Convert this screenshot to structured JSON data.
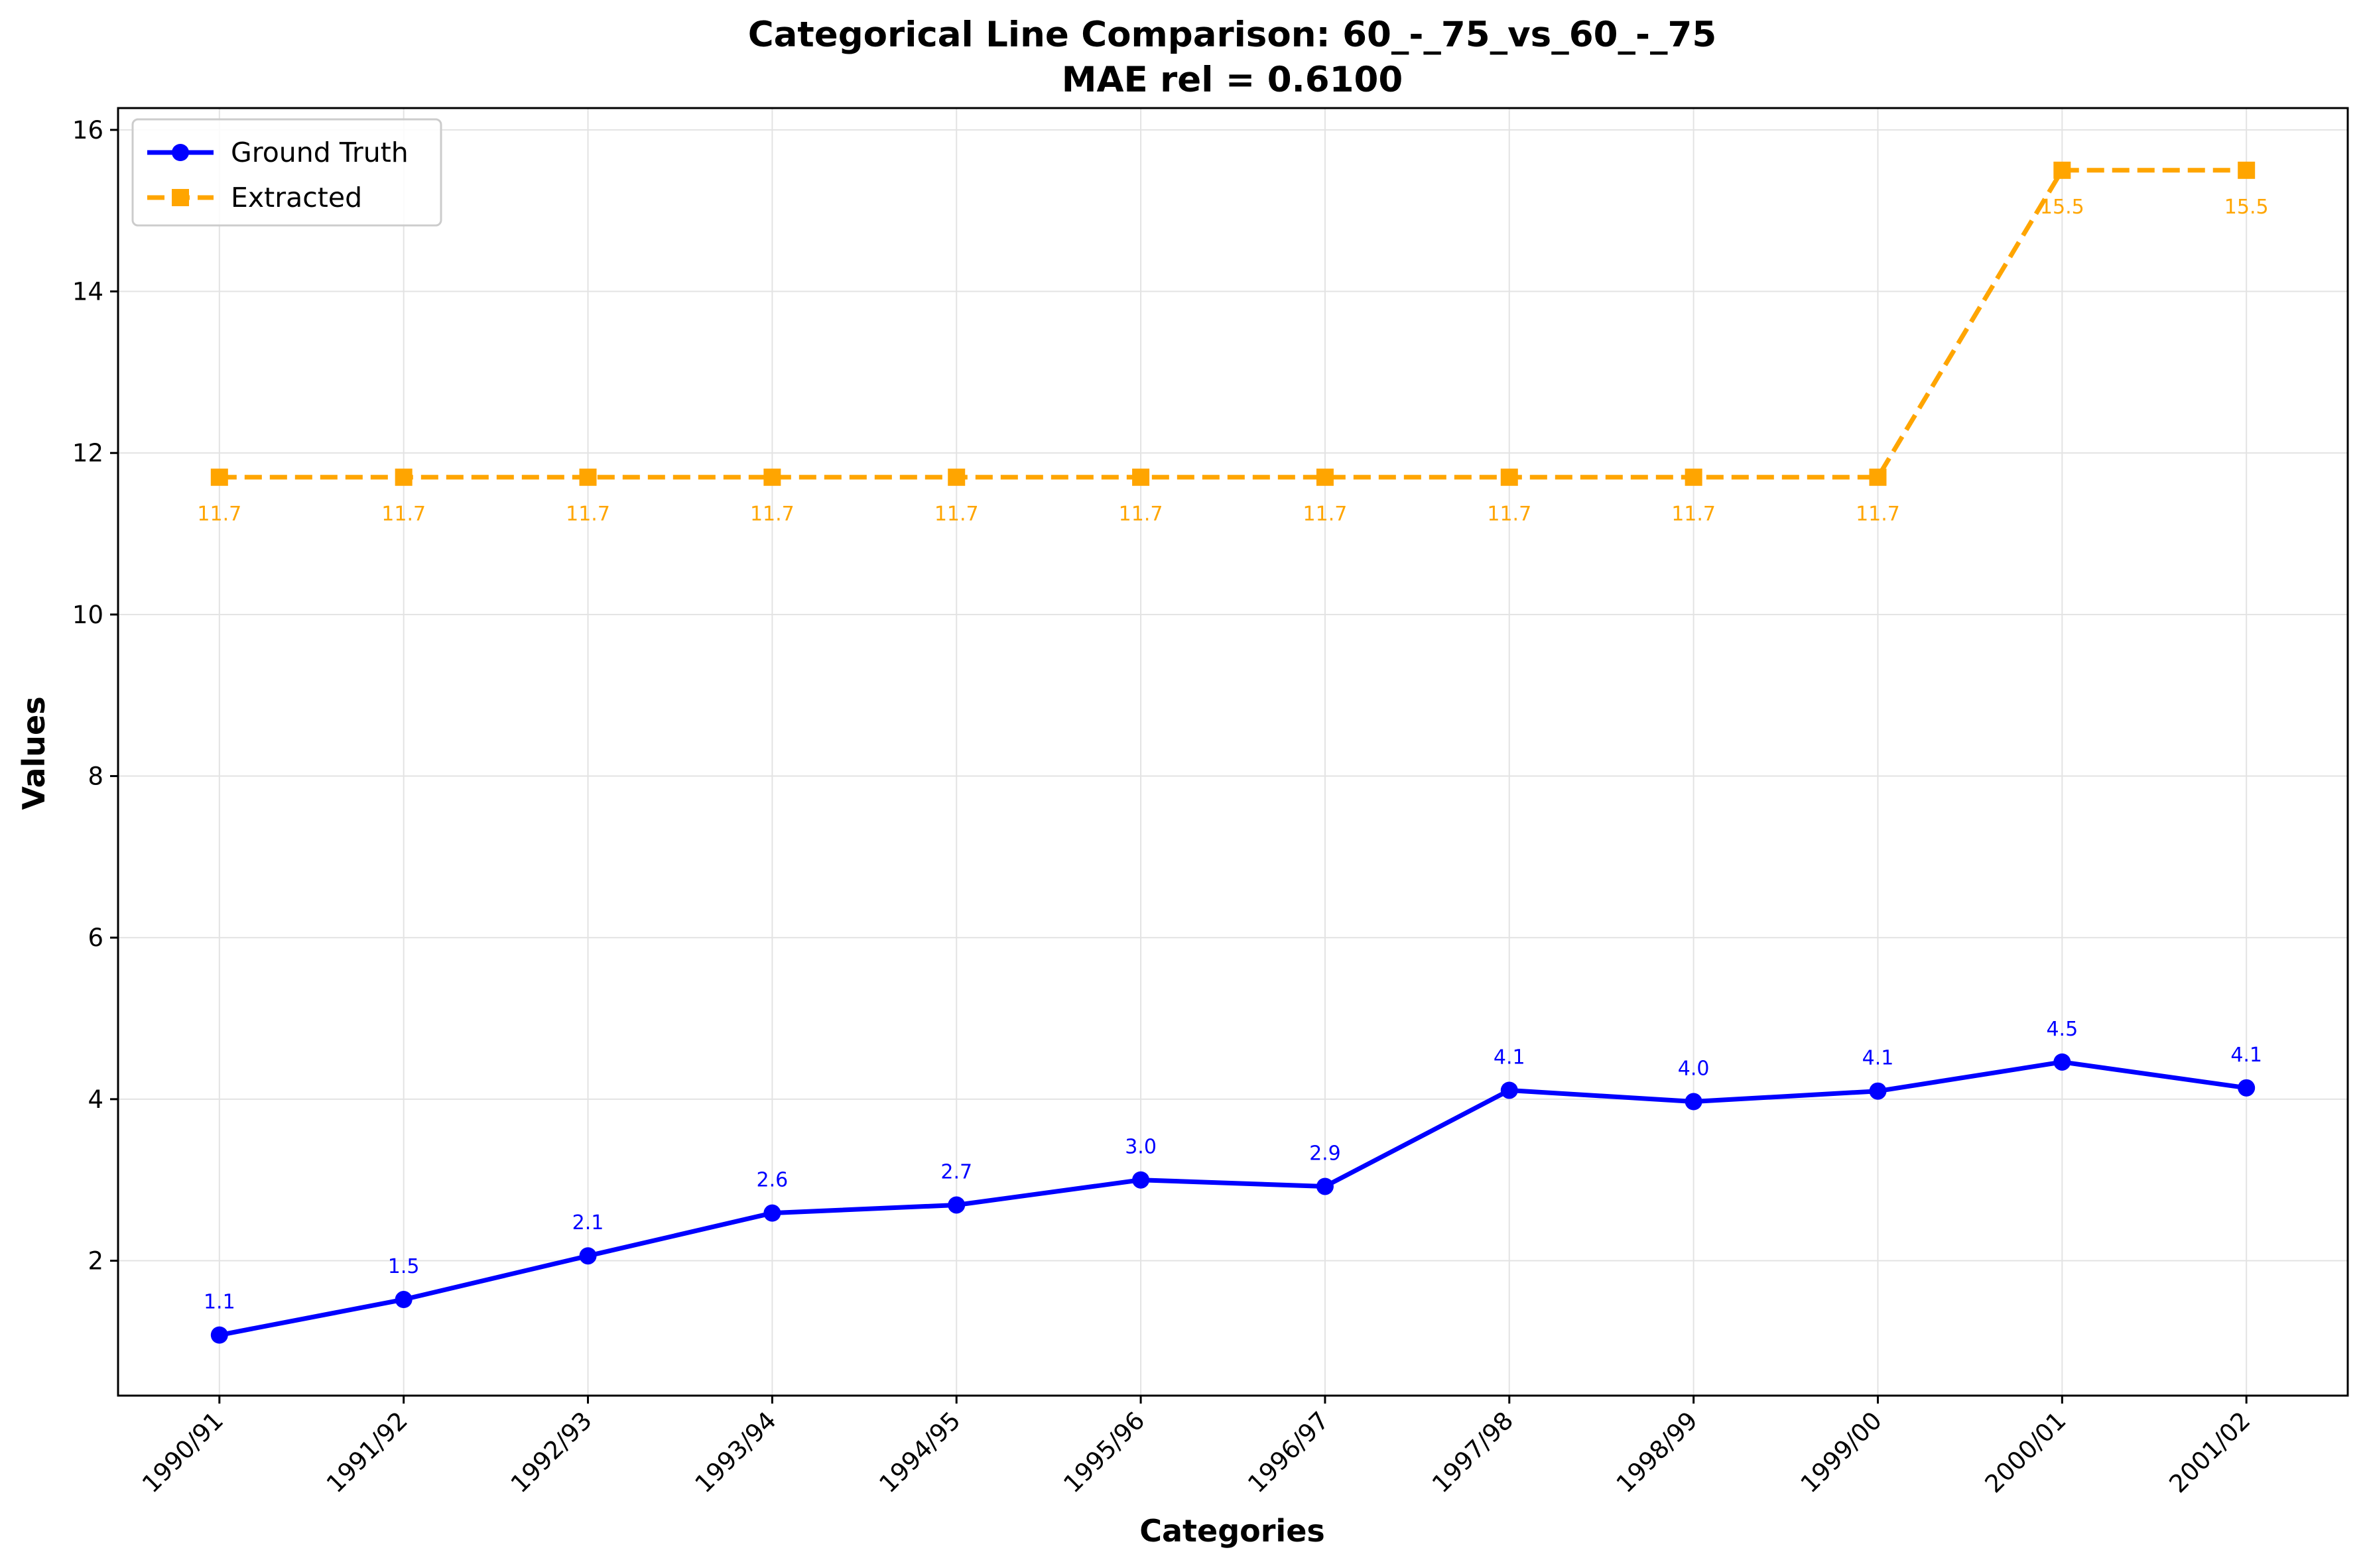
{
  "chart_data": {
    "type": "line",
    "title": "Categorical Line Comparison: 60_-_75_vs_60_-_75",
    "subtitle": "MAE rel = 0.6100",
    "xlabel": "Categories",
    "ylabel": "Values",
    "categories": [
      "1990/91",
      "1991/92",
      "1992/93",
      "1993/94",
      "1994/95",
      "1995/96",
      "1996/97",
      "1997/98",
      "1998/99",
      "1999/00",
      "2000/01",
      "2001/02"
    ],
    "ylim": [
      0.33,
      16.27
    ],
    "yticks": [
      2,
      4,
      6,
      8,
      10,
      12,
      14,
      16
    ],
    "grid": true,
    "legend_position": "top-left",
    "series": [
      {
        "name": "Ground Truth",
        "color": "#0000ff",
        "marker": "circle",
        "linestyle": "solid",
        "label_position": "above",
        "values": [
          1.08,
          1.52,
          2.06,
          2.59,
          2.69,
          3.0,
          2.92,
          4.11,
          3.97,
          4.1,
          4.46,
          4.14
        ],
        "labels": [
          "1.1",
          "1.5",
          "2.1",
          "2.6",
          "2.7",
          "3.0",
          "2.9",
          "4.1",
          "4.0",
          "4.1",
          "4.5",
          "4.1"
        ]
      },
      {
        "name": "Extracted",
        "color": "#ffa500",
        "marker": "square",
        "linestyle": "dashed",
        "label_position": "below",
        "values": [
          11.7,
          11.7,
          11.7,
          11.7,
          11.7,
          11.7,
          11.7,
          11.7,
          11.7,
          11.7,
          15.5,
          15.5
        ],
        "labels": [
          "11.7",
          "11.7",
          "11.7",
          "11.7",
          "11.7",
          "11.7",
          "11.7",
          "11.7",
          "11.7",
          "11.7",
          "15.5",
          "15.5"
        ]
      }
    ]
  }
}
